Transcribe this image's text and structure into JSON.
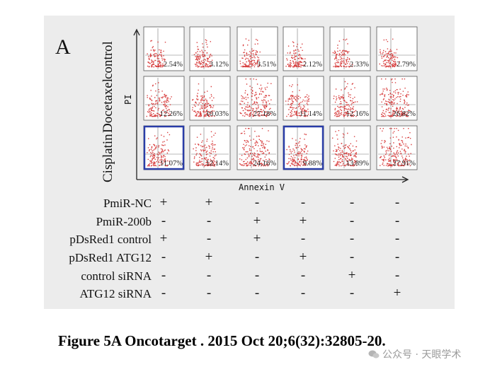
{
  "figure": {
    "panel_label": "A",
    "row_labels": [
      "control",
      "Docetaxel",
      "Cisplatin"
    ],
    "y_axis_label": "PI",
    "x_axis_label": "Annexin V",
    "percentages": [
      [
        "2.54%",
        "3.12%",
        "3.51%",
        "2.12%",
        "2.33%",
        "2.79%"
      ],
      [
        "12.26%",
        "10.03%",
        "27.18%",
        "11.14%",
        "12.16%",
        "26.82%"
      ],
      [
        "11.07%",
        "12.14%",
        "24.16%",
        "9.88%",
        "13.89%",
        "27.91%"
      ]
    ],
    "highlighted_panels": [
      [
        2,
        0
      ],
      [
        2,
        3
      ]
    ],
    "colors": {
      "dots": "#d42a2a",
      "highlight": "#2a3da8",
      "axis": "#222222"
    },
    "conditions": [
      {
        "label": "PmiR-NC",
        "signs": [
          "+",
          "+",
          "-",
          "-",
          "-",
          "-"
        ]
      },
      {
        "label": "PmiR-200b",
        "signs": [
          "-",
          "-",
          "+",
          "+",
          "-",
          "-"
        ]
      },
      {
        "label": "pDsRed1 control",
        "signs": [
          "+",
          "-",
          "+",
          "-",
          "-",
          "-"
        ]
      },
      {
        "label": "pDsRed1 ATG12",
        "signs": [
          "-",
          "+",
          "-",
          "+",
          "-",
          "-"
        ]
      },
      {
        "label": "control siRNA",
        "signs": [
          "-",
          "-",
          "-",
          "-",
          "+",
          "-"
        ]
      },
      {
        "label": "ATG12 siRNA",
        "signs": [
          "-",
          "-",
          "-",
          "-",
          "-",
          "+"
        ]
      }
    ]
  },
  "caption": "Figure 5A Oncotarget . 2015 Oct 20;6(32):32805-20.",
  "watermark": "公众号 · 天眼学术"
}
